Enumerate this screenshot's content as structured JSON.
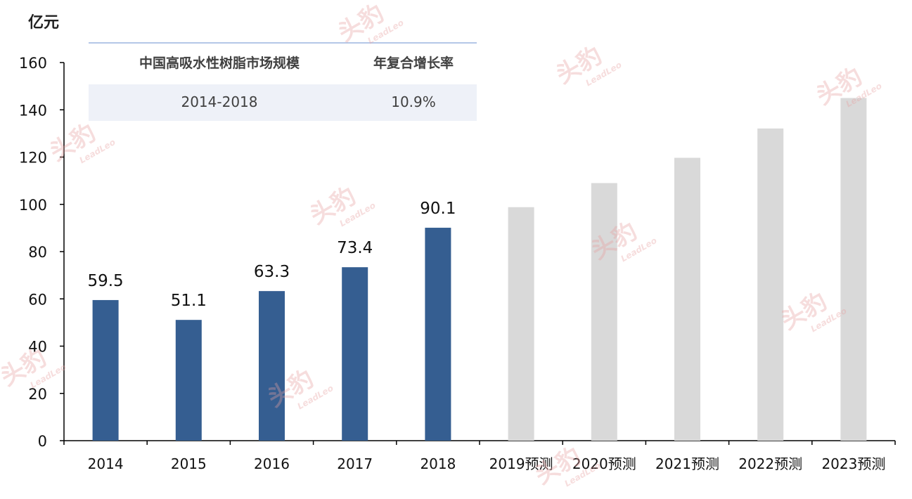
{
  "unit_label": "亿元",
  "table": {
    "headers": [
      "中国高吸水性树脂市场规模",
      "年复合增长率"
    ],
    "row": [
      "2014-2018",
      "10.9%"
    ]
  },
  "watermark": {
    "text": "头豹",
    "sub": "LeadLeo"
  },
  "colors": {
    "actual": "#355e91",
    "forecast": "#d9d9d9",
    "axis": "#000000"
  },
  "chart_data": {
    "type": "bar",
    "title": "",
    "xlabel": "",
    "ylabel": "亿元",
    "ylim": [
      0,
      160
    ],
    "yticks": [
      0,
      20,
      40,
      60,
      80,
      100,
      120,
      140,
      160
    ],
    "categories": [
      "2014",
      "2015",
      "2016",
      "2017",
      "2018",
      "2019预测",
      "2020预测",
      "2021预测",
      "2022预测",
      "2023预测"
    ],
    "values": [
      59.5,
      51.1,
      63.3,
      73.4,
      90.1,
      98.8,
      109.0,
      119.7,
      132.1,
      145.0
    ],
    "forecast": [
      false,
      false,
      false,
      false,
      false,
      true,
      true,
      true,
      true,
      true
    ],
    "data_labels": [
      "59.5",
      "51.1",
      "63.3",
      "73.4",
      "90.1",
      null,
      null,
      null,
      null,
      null
    ],
    "grid": false,
    "legend": "none"
  }
}
